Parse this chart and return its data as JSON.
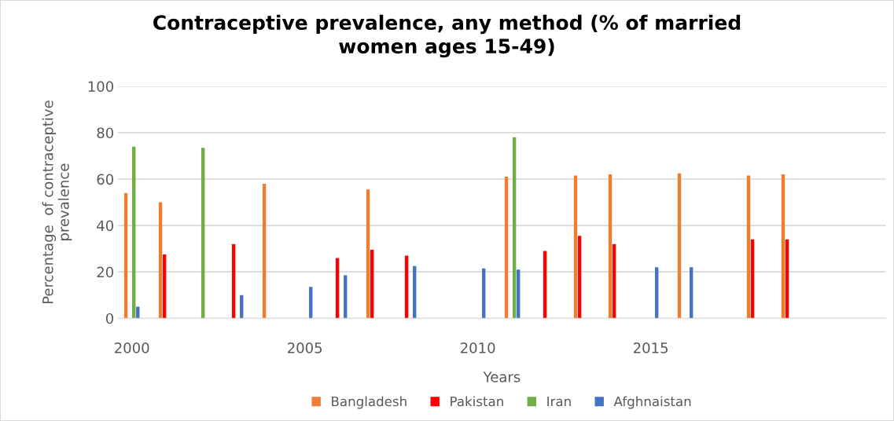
{
  "chart_data": {
    "type": "bar",
    "title": "Contraceptive prevalence, any method (% of married\nwomen ages 15-49)",
    "xlabel": "Years",
    "ylabel": "Percentage  of contraceptive\nprevalence",
    "series": [
      {
        "name": "Bangladesh",
        "color": "#ed7d31",
        "x": [
          2000,
          2001,
          2004,
          2007,
          2011,
          2013,
          2014,
          2016,
          2018,
          2019
        ],
        "values": [
          54,
          50,
          58,
          55.5,
          61,
          61.5,
          62,
          62.5,
          61.5,
          62
        ]
      },
      {
        "name": "Pakistan",
        "color": "#ff0000",
        "x": [
          2001,
          2003,
          2006,
          2007,
          2008,
          2012,
          2013,
          2014,
          2018,
          2019
        ],
        "values": [
          27.5,
          32,
          26,
          29.5,
          27,
          29,
          35.5,
          32,
          34,
          34
        ]
      },
      {
        "name": "Iran",
        "color": "#70ad47",
        "x": [
          2000,
          2002,
          2011
        ],
        "values": [
          74,
          73.5,
          78
        ]
      },
      {
        "name": "Afghnaistan",
        "color": "#4472c4",
        "x": [
          2000,
          2003,
          2005,
          2006,
          2008,
          2010,
          2011,
          2015,
          2016
        ],
        "values": [
          5,
          10,
          13.5,
          18.5,
          22.5,
          21.5,
          21,
          22,
          22
        ]
      }
    ],
    "xlim": [
      1999.6,
      2021.8
    ],
    "xticks": [
      2000,
      2005,
      2010,
      2015
    ],
    "ylim": [
      0,
      100
    ],
    "yticks": [
      0,
      20,
      40,
      60,
      80,
      100
    ],
    "grid": "y",
    "legend": "bottom"
  }
}
